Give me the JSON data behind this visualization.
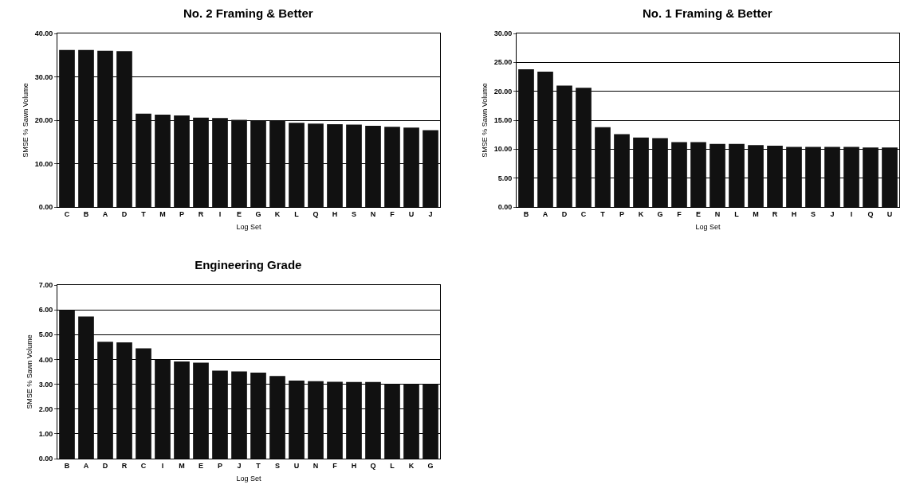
{
  "chart_data": [
    {
      "type": "bar",
      "title": "No. 2 Framing & Better",
      "xlabel": "Log Set",
      "ylabel": "SMSE % Sawn Volume",
      "categories": [
        "C",
        "B",
        "A",
        "D",
        "T",
        "M",
        "P",
        "R",
        "I",
        "E",
        "G",
        "K",
        "L",
        "Q",
        "H",
        "S",
        "N",
        "F",
        "U",
        "J"
      ],
      "values": [
        36.2,
        36.2,
        36.0,
        35.9,
        21.5,
        21.3,
        21.1,
        20.6,
        20.5,
        20.1,
        19.9,
        19.9,
        19.4,
        19.2,
        19.1,
        19.0,
        18.7,
        18.5,
        18.3,
        17.7
      ],
      "color": "#111111",
      "ylim": [
        0,
        40
      ],
      "yticks": [
        {
          "value": 0,
          "label": "0.00"
        },
        {
          "value": 10,
          "label": "10.00"
        },
        {
          "value": 20,
          "label": "20.00"
        },
        {
          "value": 30,
          "label": "30.00"
        },
        {
          "value": 40,
          "label": "40.00"
        }
      ],
      "grid": "y",
      "legend": false
    },
    {
      "type": "bar",
      "title": "No. 1 Framing & Better",
      "xlabel": "Log Set",
      "ylabel": "SMSE % Sawn Volume",
      "categories": [
        "B",
        "A",
        "D",
        "C",
        "T",
        "P",
        "K",
        "G",
        "F",
        "E",
        "N",
        "L",
        "M",
        "R",
        "H",
        "S",
        "J",
        "I",
        "Q",
        "U"
      ],
      "values": [
        23.8,
        23.4,
        21.0,
        20.6,
        13.8,
        12.6,
        12.0,
        11.9,
        11.2,
        11.2,
        10.9,
        10.9,
        10.7,
        10.6,
        10.4,
        10.4,
        10.4,
        10.4,
        10.3,
        10.3
      ],
      "color": "#111111",
      "ylim": [
        0,
        30
      ],
      "yticks": [
        {
          "value": 0,
          "label": "0.00"
        },
        {
          "value": 5,
          "label": "5.00"
        },
        {
          "value": 10,
          "label": "10.00"
        },
        {
          "value": 15,
          "label": "15.00"
        },
        {
          "value": 20,
          "label": "20.00"
        },
        {
          "value": 25,
          "label": "25.00"
        },
        {
          "value": 30,
          "label": "30.00"
        }
      ],
      "grid": "y",
      "legend": false
    },
    {
      "type": "bar",
      "title": "Engineering Grade",
      "xlabel": "Log Set",
      "ylabel": "SMSE % Sawn Volume",
      "categories": [
        "B",
        "A",
        "D",
        "R",
        "C",
        "I",
        "M",
        "E",
        "P",
        "J",
        "T",
        "S",
        "U",
        "N",
        "F",
        "H",
        "Q",
        "L",
        "K",
        "G"
      ],
      "values": [
        6.0,
        5.73,
        4.71,
        4.69,
        4.45,
        3.99,
        3.92,
        3.87,
        3.55,
        3.52,
        3.47,
        3.33,
        3.15,
        3.12,
        3.1,
        3.09,
        3.09,
        3.0,
        3.0,
        3.0
      ],
      "color": "#111111",
      "ylim": [
        0,
        7
      ],
      "yticks": [
        {
          "value": 0,
          "label": "0.00"
        },
        {
          "value": 1,
          "label": "1.00"
        },
        {
          "value": 2,
          "label": "2.00"
        },
        {
          "value": 3,
          "label": "3.00"
        },
        {
          "value": 4,
          "label": "4.00"
        },
        {
          "value": 5,
          "label": "5.00"
        },
        {
          "value": 6,
          "label": "6.00"
        },
        {
          "value": 7,
          "label": "7.00"
        }
      ],
      "grid": "y",
      "legend": false
    }
  ]
}
